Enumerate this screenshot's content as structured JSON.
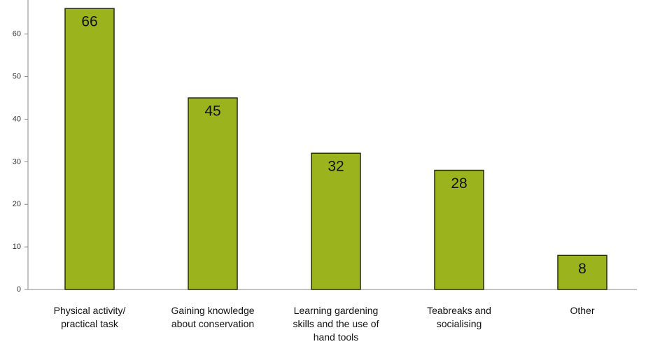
{
  "chart_data": {
    "type": "bar",
    "categories": [
      "Physical activity/\npractical task",
      "Gaining knowledge\nabout conservation",
      "Learning gardening\nskills and the use of\nhand tools",
      "Teabreaks and\nsocialising",
      "Other"
    ],
    "values": [
      66,
      45,
      32,
      28,
      8
    ],
    "color": "#9bb41e",
    "ylim": [
      0,
      68
    ],
    "yticks": [
      0,
      10,
      20,
      30,
      40,
      50,
      60
    ]
  }
}
